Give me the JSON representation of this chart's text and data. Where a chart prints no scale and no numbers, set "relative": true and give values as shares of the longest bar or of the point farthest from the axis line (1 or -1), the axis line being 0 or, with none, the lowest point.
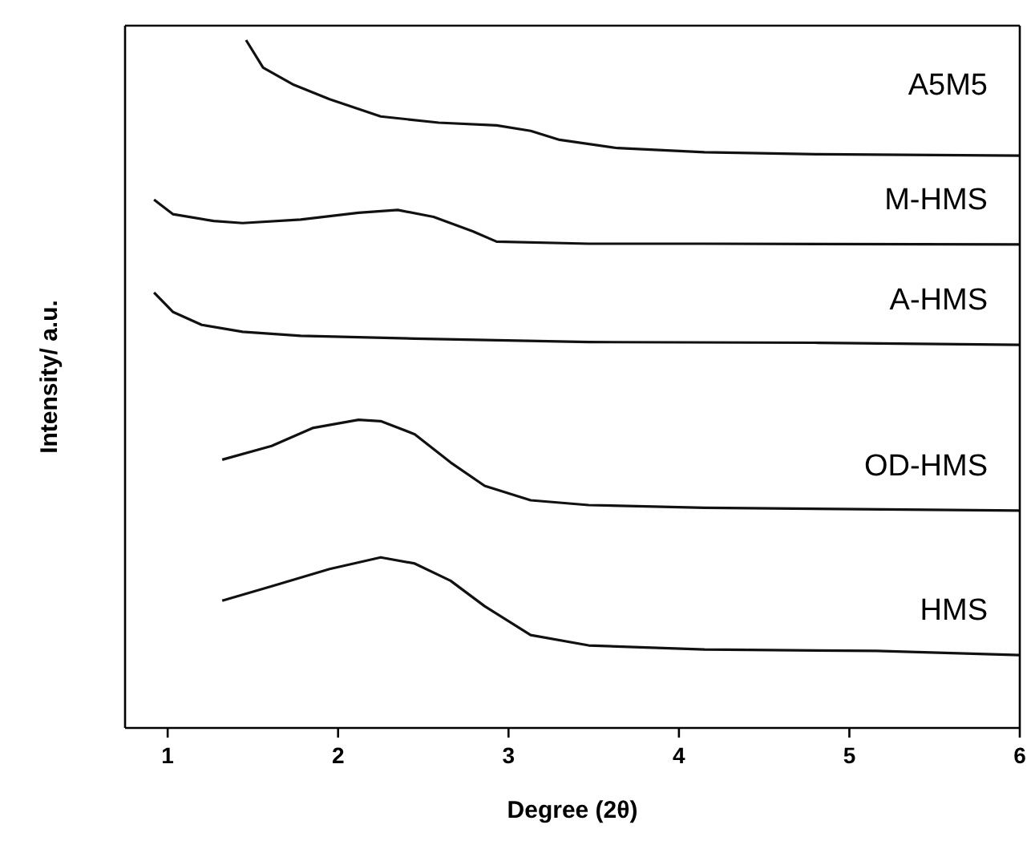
{
  "chart_data": {
    "type": "line",
    "relative": true,
    "xlabel": "Degree (2θ)",
    "ylabel": "Intensity/ a.u.",
    "xlim": [
      0.75,
      6
    ],
    "xticks": [
      1,
      2,
      3,
      4,
      5,
      6
    ],
    "marker": "none",
    "line_style": "solid",
    "series": [
      {
        "name": "A5M5",
        "color": "#111111",
        "x": [
          1.46,
          1.56,
          1.74,
          1.95,
          2.25,
          2.59,
          2.93,
          3.13,
          3.3,
          3.64,
          4.15,
          4.82,
          6.0
        ],
        "values": [
          1.0,
          0.96,
          0.935,
          0.914,
          0.889,
          0.88,
          0.876,
          0.868,
          0.855,
          0.843,
          0.837,
          0.834,
          0.832
        ]
      },
      {
        "name": "M-HMS",
        "color": "#111111",
        "x": [
          0.92,
          1.03,
          1.27,
          1.44,
          1.78,
          2.12,
          2.35,
          2.56,
          2.79,
          2.93,
          3.47,
          4.15,
          6.0
        ],
        "values": [
          0.768,
          0.747,
          0.737,
          0.734,
          0.739,
          0.749,
          0.753,
          0.743,
          0.722,
          0.707,
          0.704,
          0.704,
          0.703
        ]
      },
      {
        "name": "A-HMS",
        "color": "#111111",
        "x": [
          0.92,
          1.03,
          1.2,
          1.44,
          1.78,
          2.45,
          3.47,
          4.82,
          6.0
        ],
        "values": [
          0.633,
          0.605,
          0.586,
          0.576,
          0.57,
          0.566,
          0.561,
          0.56,
          0.557
        ]
      },
      {
        "name": "OD-HMS",
        "color": "#111111",
        "x": [
          1.32,
          1.61,
          1.85,
          2.12,
          2.25,
          2.45,
          2.66,
          2.86,
          3.13,
          3.47,
          4.15,
          6.0
        ],
        "values": [
          0.39,
          0.41,
          0.436,
          0.448,
          0.446,
          0.427,
          0.386,
          0.352,
          0.331,
          0.324,
          0.32,
          0.316
        ]
      },
      {
        "name": "HMS",
        "color": "#111111",
        "x": [
          1.32,
          1.61,
          1.95,
          2.25,
          2.45,
          2.66,
          2.86,
          3.13,
          3.47,
          4.15,
          5.16,
          6.0
        ],
        "values": [
          0.185,
          0.206,
          0.231,
          0.248,
          0.239,
          0.214,
          0.177,
          0.135,
          0.12,
          0.114,
          0.112,
          0.106
        ]
      }
    ]
  }
}
